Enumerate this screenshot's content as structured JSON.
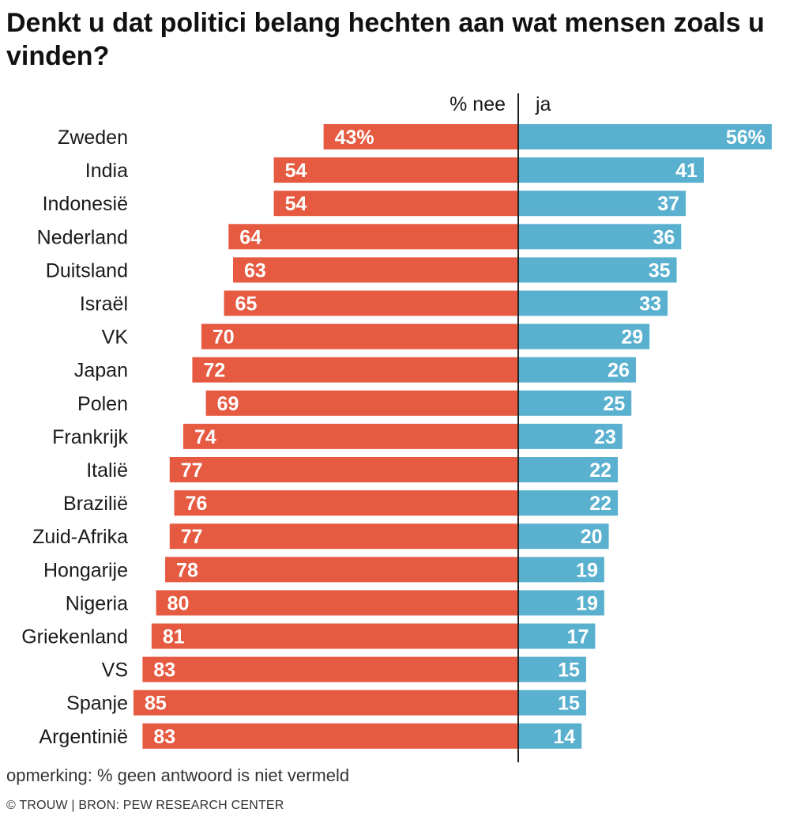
{
  "title": "Denkt u dat politici belang hechten aan wat mensen zoals u vinden?",
  "note": "opmerking: % geen antwoord is niet vermeld",
  "credit": "© TROUW | BRON: PEW RESEARCH CENTER",
  "chart_data": {
    "type": "bar",
    "orientation": "horizontal-diverging",
    "xlim": [
      -100,
      100
    ],
    "grid": false,
    "legend": "none",
    "categories": [
      "Zweden",
      "India",
      "Indonesië",
      "Nederland",
      "Duitsland",
      "Israël",
      "VK",
      "Japan",
      "Polen",
      "Frankrijk",
      "Italië",
      "Brazilië",
      "Zuid-Afrika",
      "Hongarije",
      "Nigeria",
      "Griekenland",
      "VS",
      "Spanje",
      "Argentinië"
    ],
    "series": [
      {
        "name": "% nee",
        "direction": "left",
        "color": "#e55a40",
        "values": [
          43,
          54,
          54,
          64,
          63,
          65,
          70,
          72,
          69,
          74,
          77,
          76,
          77,
          78,
          80,
          81,
          83,
          85,
          83
        ],
        "labels": [
          "43%",
          "54",
          "54",
          "64",
          "63",
          "65",
          "70",
          "72",
          "69",
          "74",
          "77",
          "76",
          "77",
          "78",
          "80",
          "81",
          "83",
          "85",
          "83"
        ]
      },
      {
        "name": "ja",
        "direction": "right",
        "color": "#5ab0cf",
        "values": [
          56,
          41,
          37,
          36,
          35,
          33,
          29,
          26,
          25,
          23,
          22,
          22,
          20,
          19,
          19,
          17,
          15,
          15,
          14
        ],
        "labels": [
          "56%",
          "41",
          "37",
          "36",
          "35",
          "33",
          "29",
          "26",
          "25",
          "23",
          "22",
          "22",
          "20",
          "19",
          "19",
          "17",
          "15",
          "15",
          "14"
        ]
      }
    ]
  }
}
